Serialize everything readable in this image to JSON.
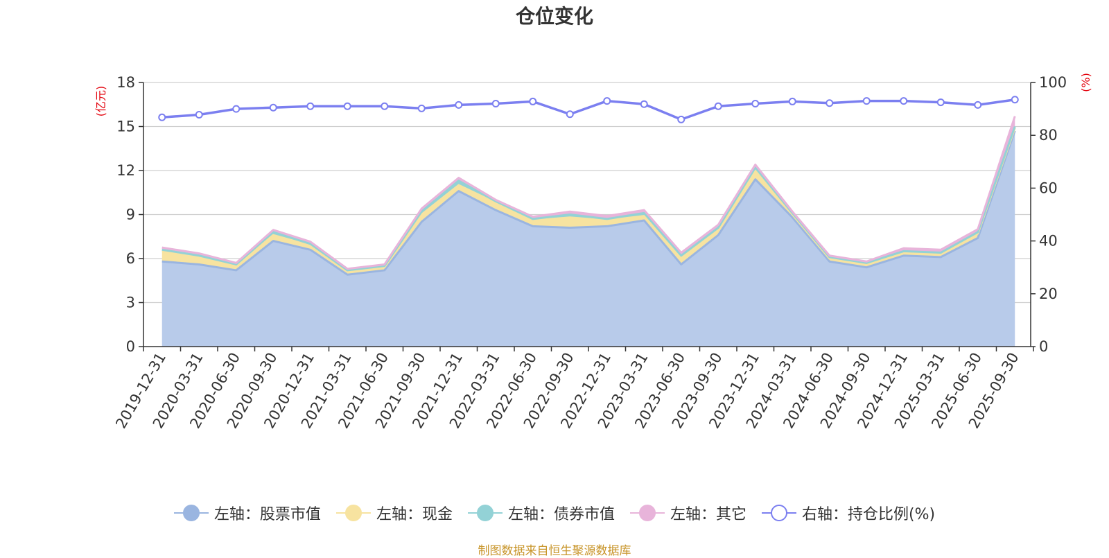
{
  "title": "仓位变化",
  "source": "制图数据来自恒生聚源数据库",
  "colors": {
    "stock": "#9ab5e0",
    "stock_fill": "#b8cbea",
    "cash": "#f7e3a0",
    "bond": "#93d2d6",
    "other": "#e8b4da",
    "ratio": "#7b7ff0",
    "axis": "#333333",
    "grid": "#cfcfcf",
    "unit": "#e3000b"
  },
  "chart_data": {
    "type": "area",
    "x": [
      "2019-12-31",
      "2020-03-31",
      "2020-06-30",
      "2020-09-30",
      "2020-12-31",
      "2021-03-31",
      "2021-06-30",
      "2021-09-30",
      "2021-12-31",
      "2022-03-31",
      "2022-06-30",
      "2022-09-30",
      "2022-12-31",
      "2023-03-31",
      "2023-06-30",
      "2023-09-30",
      "2023-12-31",
      "2024-03-31",
      "2024-06-30",
      "2024-09-30",
      "2024-12-31",
      "2025-03-31",
      "2025-06-30",
      "2025-09-30"
    ],
    "left_axis": {
      "unit": "(亿元)",
      "ylim": [
        0,
        18
      ],
      "ticks": [
        "0",
        "3",
        "6",
        "9",
        "12",
        "15",
        "18"
      ]
    },
    "right_axis": {
      "unit": "(%)",
      "ylim": [
        0,
        100
      ],
      "ticks": [
        "0",
        "20",
        "40",
        "60",
        "80",
        "100"
      ]
    },
    "grid": true,
    "legend_position": "bottom",
    "series": [
      {
        "name": "左轴：股票市值",
        "axis": "left",
        "stacked": true,
        "values": [
          5.8,
          5.6,
          5.2,
          7.2,
          6.6,
          4.9,
          5.2,
          8.5,
          10.6,
          9.3,
          8.2,
          8.1,
          8.2,
          8.6,
          5.6,
          7.6,
          11.4,
          8.8,
          5.8,
          5.4,
          6.2,
          6.1,
          7.4,
          14.7
        ]
      },
      {
        "name": "左轴：现金",
        "axis": "left",
        "stacked": true,
        "values": [
          0.7,
          0.5,
          0.3,
          0.4,
          0.3,
          0.2,
          0.2,
          0.5,
          0.4,
          0.5,
          0.4,
          0.7,
          0.4,
          0.3,
          0.5,
          0.4,
          0.6,
          0.2,
          0.2,
          0.2,
          0.2,
          0.2,
          0.3,
          0.2
        ]
      },
      {
        "name": "左轴：债券市值",
        "axis": "left",
        "stacked": true,
        "values": [
          0.1,
          0.1,
          0.1,
          0.2,
          0.1,
          0.1,
          0.1,
          0.2,
          0.3,
          0.1,
          0.1,
          0.2,
          0.1,
          0.2,
          0.1,
          0.1,
          0.2,
          0.1,
          0.1,
          0.1,
          0.1,
          0.1,
          0.1,
          0.1
        ]
      },
      {
        "name": "左轴：其它",
        "axis": "left",
        "stacked": true,
        "values": [
          0.15,
          0.15,
          0.1,
          0.15,
          0.15,
          0.1,
          0.1,
          0.2,
          0.2,
          0.1,
          0.15,
          0.2,
          0.2,
          0.2,
          0.2,
          0.2,
          0.2,
          0.1,
          0.1,
          0.1,
          0.2,
          0.2,
          0.2,
          0.7
        ]
      },
      {
        "name": "右轴：持仓比例(%)",
        "axis": "right",
        "stacked": false,
        "values": [
          86.8,
          87.8,
          90.0,
          90.5,
          91.0,
          91.0,
          91.0,
          90.2,
          91.5,
          92.0,
          92.8,
          88.0,
          93.0,
          91.8,
          86.0,
          91.0,
          92.0,
          92.8,
          92.2,
          93.0,
          93.0,
          92.5,
          91.5,
          93.5
        ]
      }
    ]
  }
}
